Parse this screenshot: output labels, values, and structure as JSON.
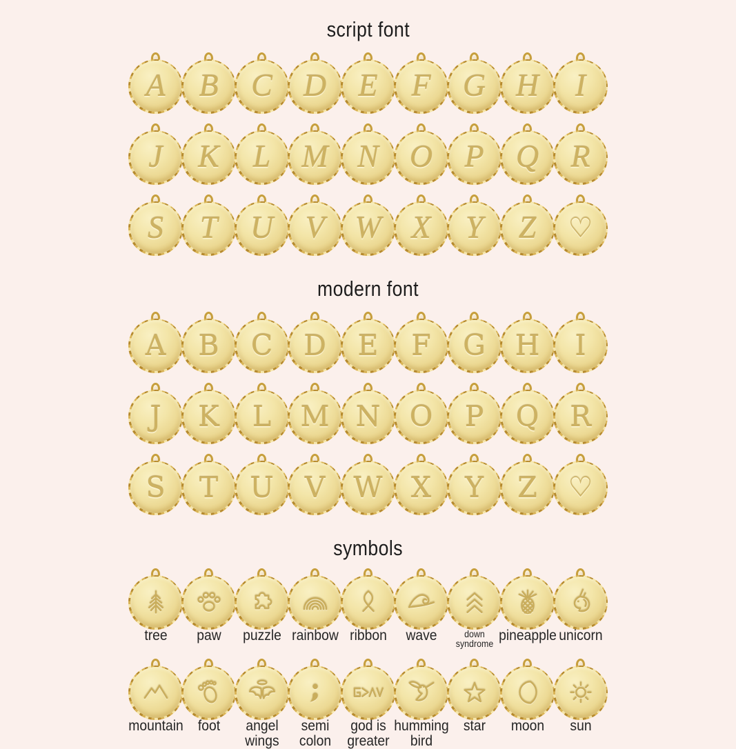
{
  "page": {
    "background_color": "#fbf0ec",
    "title_color": "#1d1d1d",
    "label_color": "#262626"
  },
  "charm_colors": {
    "gold_light": "#f9f0c3",
    "gold_mid": "#ecd994",
    "gold_dark": "#d8b85e",
    "rim_gold": "#c79f3d",
    "engraving_gold": "#cdb262"
  },
  "sections": {
    "script": {
      "title": "script font",
      "rows": [
        [
          "A",
          "B",
          "C",
          "D",
          "E",
          "F",
          "G",
          "H",
          "I"
        ],
        [
          "J",
          "K",
          "L",
          "M",
          "N",
          "O",
          "P",
          "Q",
          "R"
        ],
        [
          "S",
          "T",
          "U",
          "V",
          "W",
          "X",
          "Y",
          "Z",
          "♡"
        ]
      ]
    },
    "modern": {
      "title": "modern font",
      "rows": [
        [
          "A",
          "B",
          "C",
          "D",
          "E",
          "F",
          "G",
          "H",
          "I"
        ],
        [
          "J",
          "K",
          "L",
          "M",
          "N",
          "O",
          "P",
          "Q",
          "R"
        ],
        [
          "S",
          "T",
          "U",
          "V",
          "W",
          "X",
          "Y",
          "Z",
          "♡"
        ]
      ]
    },
    "symbols": {
      "title": "symbols",
      "rows": [
        [
          {
            "icon": "tree-icon",
            "label": "tree"
          },
          {
            "icon": "paw-icon",
            "label": "paw"
          },
          {
            "icon": "puzzle-icon",
            "label": "puzzle"
          },
          {
            "icon": "rainbow-icon",
            "label": "rainbow"
          },
          {
            "icon": "ribbon-icon",
            "label": "ribbon"
          },
          {
            "icon": "wave-icon",
            "label": "wave"
          },
          {
            "icon": "down-syndrome-icon",
            "label": "down\nsyndrome",
            "small": true
          },
          {
            "icon": "pineapple-icon",
            "label": "pineapple"
          },
          {
            "icon": "unicorn-icon",
            "label": "unicorn"
          }
        ],
        [
          {
            "icon": "mountain-icon",
            "label": "mountain"
          },
          {
            "icon": "foot-icon",
            "label": "foot"
          },
          {
            "icon": "angel-wings-icon",
            "label": "angel\nwings"
          },
          {
            "icon": "semicolon-icon",
            "label": "semi\ncolon"
          },
          {
            "icon": "god-is-greater-icon",
            "label": "god is\ngreater"
          },
          {
            "icon": "hummingbird-icon",
            "label": "humming\nbird"
          },
          {
            "icon": "star-icon",
            "label": "star"
          },
          {
            "icon": "moon-icon",
            "label": "moon"
          },
          {
            "icon": "sun-icon",
            "label": "sun"
          }
        ]
      ]
    }
  }
}
